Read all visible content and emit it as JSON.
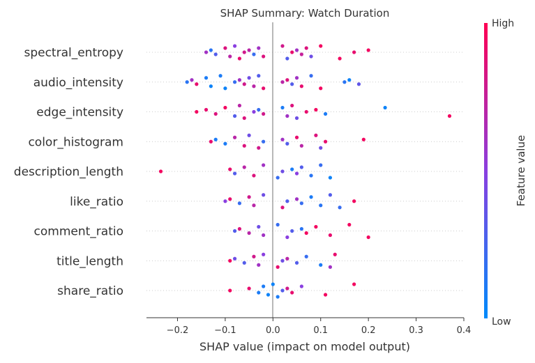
{
  "chart_data": {
    "type": "scatter",
    "title": "SHAP Summary: Watch Duration",
    "xlabel": "SHAP value (impact on model output)",
    "xlim": [
      -0.265,
      0.4
    ],
    "x_ticks": [
      -0.2,
      -0.1,
      0.0,
      0.1,
      0.2,
      0.3,
      0.4
    ],
    "x_tick_labels": [
      "−0.2",
      "−0.1",
      "0.0",
      "0.1",
      "0.2",
      "0.3",
      "0.4"
    ],
    "features": [
      "spectral_entropy",
      "audio_intensity",
      "edge_intensity",
      "color_histogram",
      "description_length",
      "like_ratio",
      "comment_ratio",
      "title_length",
      "share_ratio"
    ],
    "colorbar": {
      "label": "Feature value",
      "high_label": "High",
      "low_label": "Low",
      "low_color": "#008bfb",
      "high_color": "#ff0052"
    },
    "gridlines": "dotted horizontal per feature",
    "series": [
      {
        "feature": "spectral_entropy",
        "points": [
          [
            -0.14,
            0.6
          ],
          [
            -0.13,
            0.15
          ],
          [
            -0.12,
            0.3
          ],
          [
            -0.1,
            0.85
          ],
          [
            -0.09,
            0.7
          ],
          [
            -0.08,
            0.5
          ],
          [
            -0.07,
            0.9
          ],
          [
            -0.06,
            0.8
          ],
          [
            -0.05,
            0.7
          ],
          [
            -0.04,
            0.2
          ],
          [
            -0.03,
            0.6
          ],
          [
            -0.02,
            0.85
          ],
          [
            0.02,
            0.8
          ],
          [
            0.03,
            0.3
          ],
          [
            0.04,
            0.9
          ],
          [
            0.05,
            0.6
          ],
          [
            0.06,
            0.75
          ],
          [
            0.07,
            0.85
          ],
          [
            0.08,
            0.4
          ],
          [
            0.1,
            0.95
          ],
          [
            0.14,
            0.95
          ],
          [
            0.17,
            0.9
          ],
          [
            0.2,
            0.95
          ]
        ]
      },
      {
        "feature": "audio_intensity",
        "points": [
          [
            -0.18,
            0.15
          ],
          [
            -0.17,
            0.6
          ],
          [
            -0.16,
            0.9
          ],
          [
            -0.14,
            0.1
          ],
          [
            -0.13,
            0.05
          ],
          [
            -0.11,
            0.1
          ],
          [
            -0.1,
            0.05
          ],
          [
            -0.08,
            0.2
          ],
          [
            -0.07,
            0.6
          ],
          [
            -0.06,
            0.8
          ],
          [
            -0.05,
            0.4
          ],
          [
            -0.04,
            0.7
          ],
          [
            -0.03,
            0.3
          ],
          [
            -0.02,
            0.9
          ],
          [
            0.02,
            0.7
          ],
          [
            0.03,
            0.85
          ],
          [
            0.04,
            0.3
          ],
          [
            0.05,
            0.6
          ],
          [
            0.06,
            0.9
          ],
          [
            0.08,
            0.2
          ],
          [
            0.1,
            0.95
          ],
          [
            0.15,
            0.15
          ],
          [
            0.16,
            0.05
          ],
          [
            0.18,
            0.35
          ]
        ]
      },
      {
        "feature": "edge_intensity",
        "points": [
          [
            -0.16,
            0.95
          ],
          [
            -0.14,
            0.9
          ],
          [
            -0.12,
            0.85
          ],
          [
            -0.1,
            0.95
          ],
          [
            -0.08,
            0.3
          ],
          [
            -0.07,
            0.7
          ],
          [
            -0.06,
            0.85
          ],
          [
            -0.04,
            0.5
          ],
          [
            -0.03,
            0.2
          ],
          [
            -0.02,
            0.8
          ],
          [
            0.02,
            0.1
          ],
          [
            0.03,
            0.6
          ],
          [
            0.04,
            0.85
          ],
          [
            0.05,
            0.4
          ],
          [
            0.07,
            0.9
          ],
          [
            0.09,
            0.95
          ],
          [
            0.11,
            0.1
          ],
          [
            0.235,
            0.05
          ],
          [
            0.37,
            0.95
          ]
        ]
      },
      {
        "feature": "color_histogram",
        "points": [
          [
            -0.13,
            0.9
          ],
          [
            -0.12,
            0.1
          ],
          [
            -0.1,
            0.1
          ],
          [
            -0.08,
            0.7
          ],
          [
            -0.06,
            0.85
          ],
          [
            -0.05,
            0.4
          ],
          [
            -0.03,
            0.8
          ],
          [
            -0.02,
            0.2
          ],
          [
            0.02,
            0.6
          ],
          [
            0.03,
            0.3
          ],
          [
            0.05,
            0.9
          ],
          [
            0.06,
            0.7
          ],
          [
            0.09,
            0.85
          ],
          [
            0.1,
            0.4
          ],
          [
            0.11,
            0.9
          ],
          [
            0.19,
            0.95
          ]
        ]
      },
      {
        "feature": "description_length",
        "points": [
          [
            -0.235,
            0.95
          ],
          [
            -0.09,
            0.9
          ],
          [
            -0.08,
            0.3
          ],
          [
            -0.06,
            0.7
          ],
          [
            -0.04,
            0.85
          ],
          [
            -0.02,
            0.6
          ],
          [
            0.01,
            0.2
          ],
          [
            0.02,
            0.4
          ],
          [
            0.04,
            0.1
          ],
          [
            0.05,
            0.5
          ],
          [
            0.06,
            0.3
          ],
          [
            0.08,
            0.15
          ],
          [
            0.1,
            0.2
          ],
          [
            0.12,
            0.05
          ]
        ]
      },
      {
        "feature": "like_ratio",
        "points": [
          [
            -0.1,
            0.5
          ],
          [
            -0.09,
            0.9
          ],
          [
            -0.07,
            0.2
          ],
          [
            -0.05,
            0.8
          ],
          [
            -0.04,
            0.7
          ],
          [
            -0.02,
            0.4
          ],
          [
            0.02,
            0.85
          ],
          [
            0.03,
            0.3
          ],
          [
            0.05,
            0.6
          ],
          [
            0.06,
            0.2
          ],
          [
            0.08,
            0.1
          ],
          [
            0.1,
            0.15
          ],
          [
            0.12,
            0.3
          ],
          [
            0.14,
            0.2
          ],
          [
            0.17,
            0.95
          ]
        ]
      },
      {
        "feature": "comment_ratio",
        "points": [
          [
            -0.08,
            0.3
          ],
          [
            -0.07,
            0.85
          ],
          [
            -0.05,
            0.7
          ],
          [
            -0.03,
            0.4
          ],
          [
            -0.02,
            0.6
          ],
          [
            0.01,
            0.2
          ],
          [
            0.03,
            0.5
          ],
          [
            0.04,
            0.3
          ],
          [
            0.06,
            0.15
          ],
          [
            0.07,
            0.95
          ],
          [
            0.09,
            0.95
          ],
          [
            0.12,
            0.9
          ],
          [
            0.16,
            0.95
          ],
          [
            0.2,
            0.95
          ]
        ]
      },
      {
        "feature": "title_length",
        "points": [
          [
            -0.09,
            0.95
          ],
          [
            -0.08,
            0.4
          ],
          [
            -0.06,
            0.3
          ],
          [
            -0.04,
            0.8
          ],
          [
            -0.03,
            0.6
          ],
          [
            -0.02,
            0.5
          ],
          [
            0.01,
            0.9
          ],
          [
            0.02,
            0.4
          ],
          [
            0.03,
            0.7
          ],
          [
            0.05,
            0.3
          ],
          [
            0.07,
            0.2
          ],
          [
            0.1,
            0.1
          ],
          [
            0.13,
            0.9
          ],
          [
            0.12,
            0.6
          ]
        ]
      },
      {
        "feature": "share_ratio",
        "points": [
          [
            -0.09,
            0.95
          ],
          [
            -0.05,
            0.9
          ],
          [
            -0.03,
            0.1
          ],
          [
            -0.02,
            0.1
          ],
          [
            -0.01,
            0.05
          ],
          [
            0.0,
            0.05
          ],
          [
            0.01,
            0.1
          ],
          [
            0.02,
            0.3
          ],
          [
            0.03,
            0.8
          ],
          [
            0.04,
            0.9
          ],
          [
            0.06,
            0.5
          ],
          [
            0.11,
            0.95
          ],
          [
            0.17,
            0.95
          ]
        ]
      }
    ]
  }
}
